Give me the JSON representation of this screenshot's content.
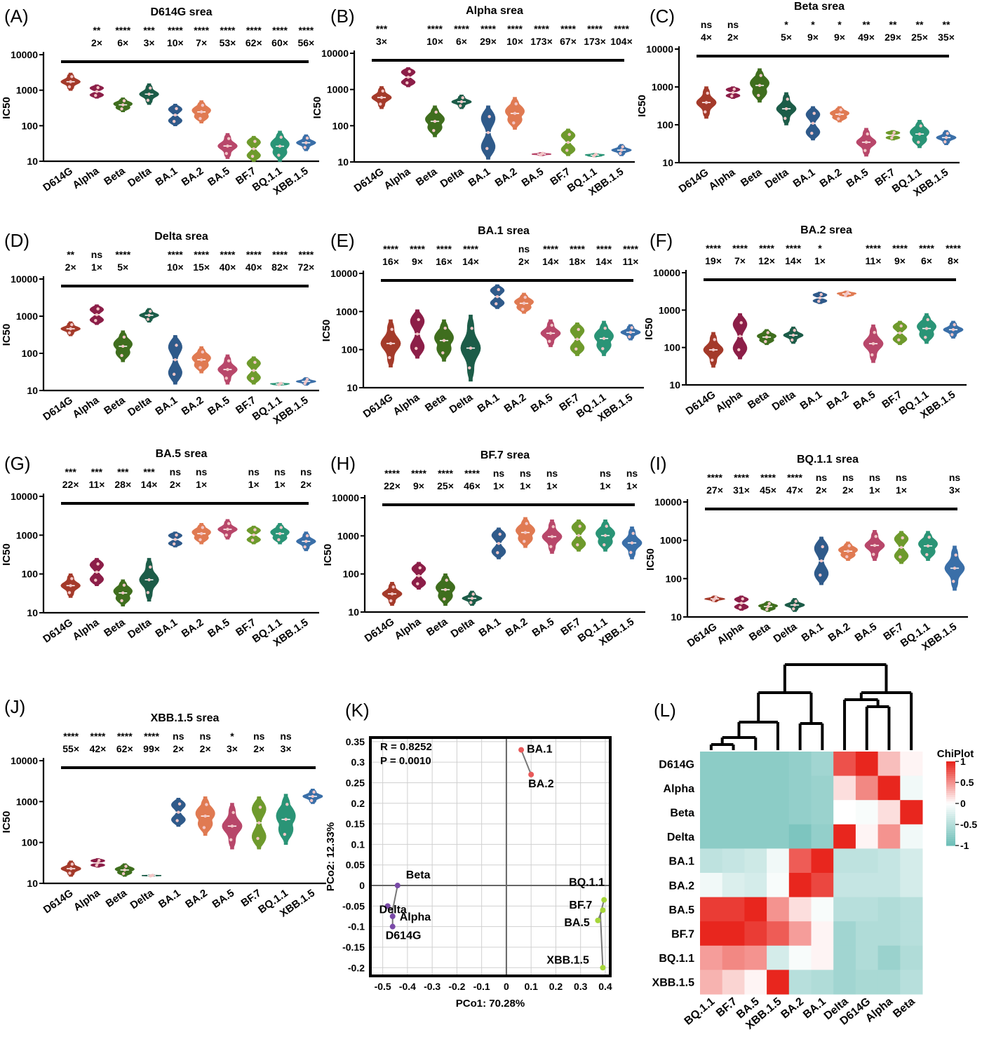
{
  "figure": {
    "panel_letters": [
      "(A)",
      "(B)",
      "(C)",
      "(D)",
      "(E)",
      "(F)",
      "(G)",
      "(H)",
      "(I)",
      "(J)",
      "(K)",
      "(L)"
    ]
  },
  "colors": {
    "D614G": "#a43a2a",
    "Alpha": "#8c1e48",
    "Beta": "#3f6e1e",
    "Delta": "#1c5c48",
    "BA.1": "#2f5a8a",
    "BA.2": "#e07a52",
    "BA.5": "#b8476a",
    "BF.7": "#6e9a2c",
    "BQ.1.1": "#2a9476",
    "XBB.1.5": "#3a6fa8",
    "pcoa_ba12": "#e85a5a",
    "pcoa_ancestral": "#7a4aa8",
    "pcoa_omicron": "#a6d63a",
    "heat_high": "#e8261e",
    "heat_mid": "#ffffff",
    "heat_low": "#6fbfb8"
  },
  "chart_data": [
    {
      "type": "violin",
      "panel": "(A)",
      "title": "D614G srea",
      "ylabel": "IC50",
      "yscale": "log",
      "ylim": [
        10,
        10000
      ],
      "yticks": [
        "10",
        "100",
        "1000",
        "10000"
      ],
      "categories": [
        "D614G",
        "Alpha",
        "Beta",
        "Delta",
        "BA.1",
        "BA.2",
        "BA.5",
        "BF.7",
        "BQ.1.1",
        "XBB.1.5"
      ],
      "values": [
        [
          1000,
          3000
        ],
        [
          600,
          1400
        ],
        [
          250,
          600
        ],
        [
          400,
          1500
        ],
        [
          100,
          400
        ],
        [
          120,
          500
        ],
        [
          12,
          60
        ],
        [
          10,
          50
        ],
        [
          10,
          70
        ],
        [
          20,
          55
        ]
      ],
      "significance": [
        "",
        "**",
        "****",
        "***",
        "****",
        "****",
        "****",
        "****",
        "****",
        "****"
      ],
      "fold": [
        "",
        "2×",
        "6×",
        "3×",
        "10×",
        "7×",
        "53×",
        "62×",
        "60×",
        "56×"
      ]
    },
    {
      "type": "violin",
      "panel": "(B)",
      "title": "Alpha srea",
      "ylabel": "IC50",
      "yscale": "log",
      "ylim": [
        10,
        10000
      ],
      "yticks": [
        "10",
        "100",
        "1000",
        "10000"
      ],
      "categories": [
        "D614G",
        "Alpha",
        "Beta",
        "Delta",
        "BA.1",
        "BA.2",
        "BA.5",
        "BF.7",
        "BQ.1.1",
        "XBB.1.5"
      ],
      "values": [
        [
          300,
          1200
        ],
        [
          1200,
          4000
        ],
        [
          50,
          350
        ],
        [
          300,
          700
        ],
        [
          12,
          350
        ],
        [
          80,
          600
        ],
        [
          15,
          18
        ],
        [
          15,
          80
        ],
        [
          14,
          17
        ],
        [
          15,
          30
        ]
      ],
      "significance": [
        "***",
        "",
        "****",
        "****",
        "****",
        "****",
        "****",
        "****",
        "****",
        "****"
      ],
      "fold": [
        "3×",
        "",
        "10×",
        "6×",
        "29×",
        "10×",
        "173×",
        "67×",
        "173×",
        "104×"
      ]
    },
    {
      "type": "violin",
      "panel": "(C)",
      "title": "Beta srea",
      "ylabel": "IC50",
      "yscale": "log",
      "ylim": [
        10,
        10000
      ],
      "yticks": [
        "10",
        "100",
        "1000",
        "10000"
      ],
      "categories": [
        "D614G",
        "Alpha",
        "Beta",
        "Delta",
        "BA.1",
        "BA.2",
        "BA.5",
        "BF.7",
        "BQ.1.1",
        "XBB.1.5"
      ],
      "values": [
        [
          150,
          1000
        ],
        [
          500,
          1000
        ],
        [
          400,
          3000
        ],
        [
          100,
          700
        ],
        [
          40,
          300
        ],
        [
          120,
          300
        ],
        [
          15,
          80
        ],
        [
          40,
          70
        ],
        [
          25,
          130
        ],
        [
          30,
          70
        ]
      ],
      "significance": [
        "ns",
        "ns",
        "",
        "*",
        "*",
        "*",
        "**",
        "**",
        "**",
        "**"
      ],
      "fold": [
        "4×",
        "2×",
        "",
        "5×",
        "9×",
        "9×",
        "49×",
        "29×",
        "25×",
        "35×"
      ]
    },
    {
      "type": "violin",
      "panel": "(D)",
      "title": "Delta srea",
      "ylabel": "IC50",
      "yscale": "log",
      "ylim": [
        10,
        10000
      ],
      "yticks": [
        "10",
        "100",
        "1000",
        "10000"
      ],
      "categories": [
        "D614G",
        "Alpha",
        "Beta",
        "Delta",
        "BA.1",
        "BA.2",
        "BA.5",
        "BF.7",
        "BQ.1.1",
        "XBB.1.5"
      ],
      "values": [
        [
          300,
          700
        ],
        [
          600,
          2000
        ],
        [
          60,
          400
        ],
        [
          700,
          1600
        ],
        [
          15,
          300
        ],
        [
          30,
          150
        ],
        [
          15,
          90
        ],
        [
          15,
          80
        ],
        [
          14,
          16
        ],
        [
          14,
          22
        ]
      ],
      "significance": [
        "**",
        "ns",
        "****",
        "",
        "****",
        "****",
        "****",
        "****",
        "****",
        "****"
      ],
      "fold": [
        "2×",
        "1×",
        "5×",
        "",
        "10×",
        "15×",
        "40×",
        "40×",
        "82×",
        "72×"
      ]
    },
    {
      "type": "violin",
      "panel": "(E)",
      "title": "BA.1 srea",
      "ylabel": "IC50",
      "yscale": "log",
      "ylim": [
        10,
        10000
      ],
      "yticks": [
        "10",
        "100",
        "1000",
        "10000"
      ],
      "categories": [
        "D614G",
        "Alpha",
        "Beta",
        "Delta",
        "BA.1",
        "BA.2",
        "BA.5",
        "BF.7",
        "BQ.1.1",
        "XBB.1.5"
      ],
      "values": [
        [
          35,
          600
        ],
        [
          60,
          1100
        ],
        [
          50,
          600
        ],
        [
          15,
          800
        ],
        [
          1200,
          5000
        ],
        [
          900,
          3000
        ],
        [
          120,
          600
        ],
        [
          70,
          500
        ],
        [
          70,
          550
        ],
        [
          180,
          450
        ]
      ],
      "significance": [
        "****",
        "****",
        "****",
        "****",
        "",
        "ns",
        "****",
        "****",
        "****",
        "****"
      ],
      "fold": [
        "16×",
        "9×",
        "16×",
        "14×",
        "",
        "2×",
        "14×",
        "18×",
        "14×",
        "11×"
      ]
    },
    {
      "type": "violin",
      "panel": "(F)",
      "title": "BA.2 srea",
      "ylabel": "IC50",
      "yscale": "log",
      "ylim": [
        10,
        10000
      ],
      "yticks": [
        "10",
        "100",
        "1000",
        "10000"
      ],
      "categories": [
        "D614G",
        "Alpha",
        "Beta",
        "Delta",
        "BA.1",
        "BA.2",
        "BA.5",
        "BF.7",
        "BQ.1.1",
        "XBB.1.5"
      ],
      "values": [
        [
          30,
          250
        ],
        [
          50,
          800
        ],
        [
          120,
          300
        ],
        [
          130,
          350
        ],
        [
          1500,
          3000
        ],
        [
          2300,
          3200
        ],
        [
          40,
          400
        ],
        [
          120,
          500
        ],
        [
          130,
          800
        ],
        [
          180,
          500
        ]
      ],
      "significance": [
        "****",
        "****",
        "****",
        "****",
        "*",
        "",
        "****",
        "****",
        "****",
        "****"
      ],
      "fold": [
        "19×",
        "7×",
        "12×",
        "14×",
        "1×",
        "",
        "11×",
        "9×",
        "6×",
        "8×"
      ]
    },
    {
      "type": "violin",
      "panel": "(G)",
      "title": "BA.5 srea",
      "ylabel": "IC50",
      "yscale": "log",
      "ylim": [
        10,
        10000
      ],
      "yticks": [
        "10",
        "100",
        "1000",
        "10000"
      ],
      "categories": [
        "D614G",
        "Alpha",
        "Beta",
        "Delta",
        "BA.1",
        "BA.2",
        "BA.5",
        "BF.7",
        "BQ.1.1",
        "XBB.1.5"
      ],
      "values": [
        [
          25,
          100
        ],
        [
          50,
          250
        ],
        [
          15,
          70
        ],
        [
          20,
          250
        ],
        [
          500,
          1200
        ],
        [
          600,
          2000
        ],
        [
          800,
          2500
        ],
        [
          600,
          1700
        ],
        [
          600,
          2000
        ],
        [
          400,
          1200
        ]
      ],
      "significance": [
        "***",
        "***",
        "***",
        "***",
        "ns",
        "ns",
        "",
        "ns",
        "ns",
        "ns"
      ],
      "fold": [
        "22×",
        "11×",
        "28×",
        "14×",
        "2×",
        "1×",
        "",
        "1×",
        "1×",
        "2×"
      ]
    },
    {
      "type": "violin",
      "panel": "(H)",
      "title": "BF.7 srea",
      "ylabel": "IC50",
      "yscale": "log",
      "ylim": [
        10,
        10000
      ],
      "yticks": [
        "10",
        "100",
        "1000",
        "10000"
      ],
      "categories": [
        "D614G",
        "Alpha",
        "Beta",
        "Delta",
        "BA.1",
        "BA.2",
        "BA.5",
        "BF.7",
        "BQ.1.1",
        "XBB.1.5"
      ],
      "values": [
        [
          15,
          60
        ],
        [
          40,
          200
        ],
        [
          15,
          100
        ],
        [
          15,
          35
        ],
        [
          250,
          1600
        ],
        [
          500,
          3000
        ],
        [
          350,
          2600
        ],
        [
          400,
          2600
        ],
        [
          400,
          2600
        ],
        [
          250,
          1700
        ]
      ],
      "significance": [
        "****",
        "****",
        "****",
        "****",
        "ns",
        "ns",
        "ns",
        "",
        "ns",
        "ns"
      ],
      "fold": [
        "22×",
        "9×",
        "25×",
        "46×",
        "1×",
        "1×",
        "1×",
        "",
        "1×",
        "1×"
      ]
    },
    {
      "type": "violin",
      "panel": "(I)",
      "title": "BQ.1.1 srea",
      "ylabel": "IC50",
      "yscale": "log",
      "ylim": [
        10,
        10000
      ],
      "yticks": [
        "10",
        "100",
        "1000",
        "10000"
      ],
      "categories": [
        "D614G",
        "Alpha",
        "Beta",
        "Delta",
        "BA.1",
        "BA.2",
        "BA.5",
        "BF.7",
        "BQ.1.1",
        "XBB.1.5"
      ],
      "values": [
        [
          25,
          35
        ],
        [
          15,
          35
        ],
        [
          14,
          25
        ],
        [
          14,
          30
        ],
        [
          70,
          1200
        ],
        [
          300,
          900
        ],
        [
          300,
          1800
        ],
        [
          250,
          1700
        ],
        [
          300,
          1700
        ],
        [
          50,
          700
        ]
      ],
      "significance": [
        "****",
        "****",
        "****",
        "****",
        "ns",
        "ns",
        "ns",
        "ns",
        "",
        "ns"
      ],
      "fold": [
        "27×",
        "31×",
        "45×",
        "47×",
        "2×",
        "2×",
        "1×",
        "1×",
        "",
        "3×"
      ]
    },
    {
      "type": "violin",
      "panel": "(J)",
      "title": "XBB.1.5 srea",
      "ylabel": "IC50",
      "yscale": "log",
      "ylim": [
        10,
        10000
      ],
      "yticks": [
        "10",
        "100",
        "1000",
        "10000"
      ],
      "categories": [
        "D614G",
        "Alpha",
        "Beta",
        "Delta",
        "BA.1",
        "BA.2",
        "BA.5",
        "BF.7",
        "BQ.1.1",
        "XBB.1.5"
      ],
      "values": [
        [
          15,
          35
        ],
        [
          25,
          40
        ],
        [
          15,
          30
        ],
        [
          15,
          16
        ],
        [
          250,
          1200
        ],
        [
          150,
          1300
        ],
        [
          70,
          900
        ],
        [
          70,
          1300
        ],
        [
          90,
          1500
        ],
        [
          900,
          2000
        ]
      ],
      "significance": [
        "****",
        "****",
        "****",
        "****",
        "ns",
        "ns",
        "*",
        "ns",
        "ns",
        ""
      ],
      "fold": [
        "55×",
        "42×",
        "62×",
        "99×",
        "2×",
        "2×",
        "3×",
        "2×",
        "3×",
        ""
      ]
    },
    {
      "type": "scatter",
      "panel": "(K)",
      "xlabel": "PCo1: 70.28%",
      "ylabel": "PCo2: 12.33%",
      "xlim": [
        -0.55,
        0.42
      ],
      "ylim": [
        -0.22,
        0.36
      ],
      "xticks": [
        "-0.5",
        "-0.4",
        "-0.3",
        "-0.2",
        "-0.1",
        "0",
        "0.1",
        "0.2",
        "0.3",
        "0.4"
      ],
      "yticks": [
        "0.35",
        "0.3",
        "0.25",
        "0.2",
        "0.15",
        "0.1",
        "0.05",
        "0",
        "-0.05",
        "-0.1",
        "-0.15",
        "-0.2"
      ],
      "stats": [
        "R = 0.8252",
        "P = 0.0010"
      ],
      "points": [
        {
          "label": "BA.1",
          "x": 0.06,
          "y": 0.33,
          "group": "ba12"
        },
        {
          "label": "BA.2",
          "x": 0.1,
          "y": 0.27,
          "group": "ba12"
        },
        {
          "label": "Beta",
          "x": -0.44,
          "y": 0.0,
          "group": "ancestral"
        },
        {
          "label": "Delta",
          "x": -0.48,
          "y": -0.05,
          "group": "ancestral"
        },
        {
          "label": "Alpha",
          "x": -0.46,
          "y": -0.075,
          "group": "ancestral"
        },
        {
          "label": "D614G",
          "x": -0.46,
          "y": -0.1,
          "group": "ancestral"
        },
        {
          "label": "BQ.1.1",
          "x": 0.395,
          "y": -0.035,
          "group": "omicron"
        },
        {
          "label": "BF.7",
          "x": 0.39,
          "y": -0.06,
          "group": "omicron"
        },
        {
          "label": "BA.5",
          "x": 0.37,
          "y": -0.085,
          "group": "omicron"
        },
        {
          "label": "XBB.1.5",
          "x": 0.39,
          "y": -0.2,
          "group": "omicron"
        }
      ],
      "centroids": {
        "ba12": [
          0.08,
          0.3
        ],
        "ancestral": [
          -0.46,
          -0.06
        ],
        "omicron": [
          0.38,
          -0.07
        ]
      }
    },
    {
      "type": "heatmap",
      "panel": "(L)",
      "legend_title": "ChiPlot",
      "legend_ticks": [
        "1",
        "0.5",
        "0",
        "-0.5",
        "-1"
      ],
      "rows": [
        "D614G",
        "Alpha",
        "Beta",
        "Delta",
        "BA.1",
        "BA.2",
        "BA.5",
        "BF.7",
        "BQ.1.1",
        "XBB.1.5"
      ],
      "columns": [
        "BQ.1.1",
        "BF.7",
        "BA.5",
        "XBB.1.5",
        "BA.2",
        "BA.1",
        "Delta",
        "D614G",
        "Alpha",
        "Beta"
      ],
      "values": [
        [
          -0.8,
          -0.8,
          -0.8,
          -0.8,
          -0.75,
          -0.65,
          0.8,
          1.0,
          0.3,
          0.05
        ],
        [
          -0.8,
          -0.8,
          -0.8,
          -0.8,
          -0.75,
          -0.7,
          0.15,
          0.55,
          1.0,
          -0.1
        ],
        [
          -0.8,
          -0.8,
          -0.8,
          -0.8,
          -0.75,
          -0.7,
          0.0,
          -0.05,
          0.15,
          1.0
        ],
        [
          -0.8,
          -0.8,
          -0.8,
          -0.8,
          -0.9,
          -0.75,
          1.0,
          0.05,
          0.5,
          -0.1
        ],
        [
          -0.45,
          -0.4,
          -0.35,
          -0.1,
          0.75,
          1.0,
          -0.45,
          -0.45,
          -0.4,
          -0.3
        ],
        [
          -0.1,
          -0.25,
          -0.3,
          -0.05,
          1.0,
          0.85,
          -0.4,
          -0.4,
          -0.4,
          -0.3
        ],
        [
          0.9,
          0.9,
          1.0,
          0.5,
          0.15,
          -0.05,
          -0.5,
          -0.5,
          -0.55,
          -0.5
        ],
        [
          1.0,
          1.0,
          0.9,
          0.75,
          0.45,
          0.05,
          -0.65,
          -0.55,
          -0.55,
          -0.5
        ],
        [
          0.45,
          0.55,
          0.5,
          -0.3,
          -0.05,
          0.05,
          -0.65,
          -0.55,
          -0.7,
          -0.55
        ],
        [
          0.35,
          0.2,
          0.05,
          1.0,
          -0.5,
          -0.55,
          -0.65,
          -0.6,
          -0.6,
          -0.5
        ]
      ]
    }
  ]
}
